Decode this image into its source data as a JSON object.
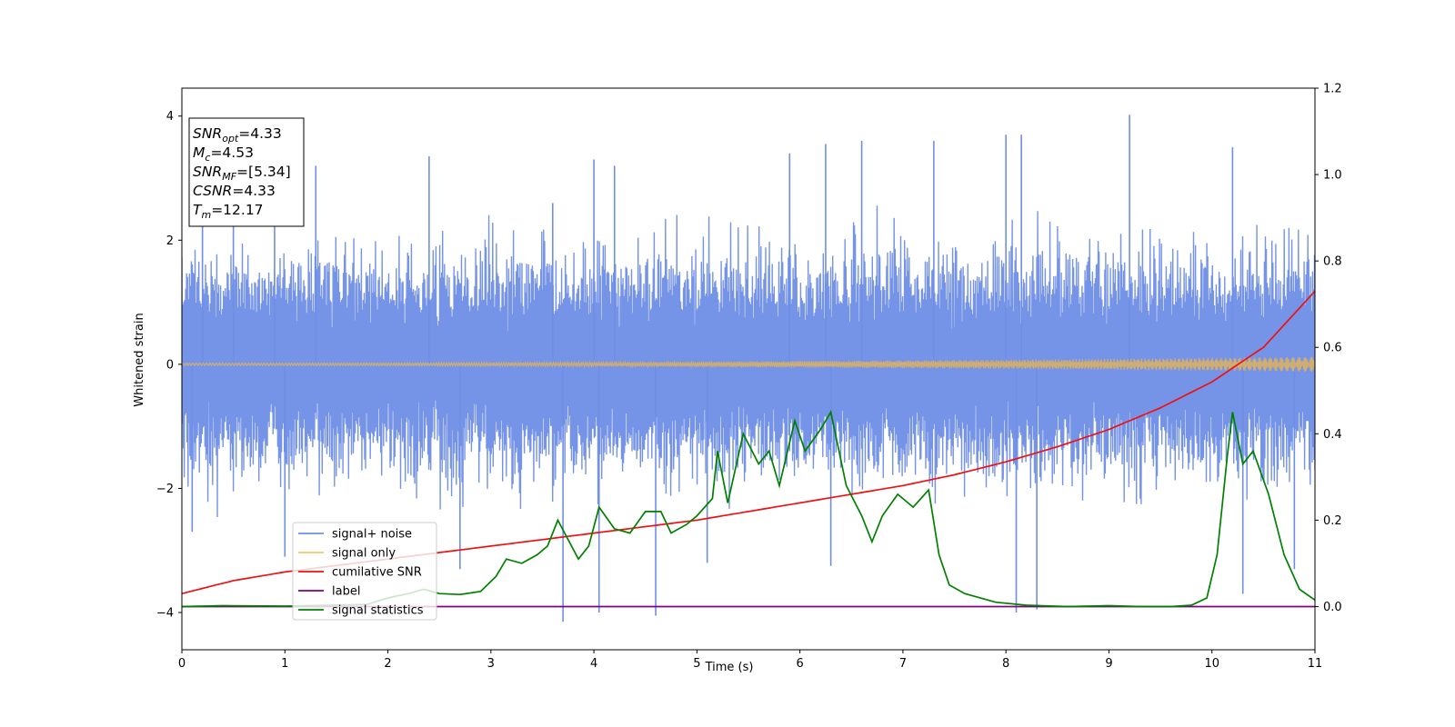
{
  "chart_data": {
    "type": "line",
    "title": "",
    "xlabel": "Time (s)",
    "ylabel": "Whitened strain",
    "xlim": [
      0,
      11
    ],
    "ylim": [
      -4.6,
      4.45
    ],
    "y2lim": [
      -0.1,
      1.2
    ],
    "xticks": [
      0,
      1,
      2,
      3,
      4,
      5,
      6,
      7,
      8,
      9,
      10,
      11
    ],
    "yticks": [
      -4,
      -2,
      0,
      2,
      4
    ],
    "y2ticks": [
      0.0,
      0.2,
      0.4,
      0.6,
      0.8,
      1.0,
      1.2
    ],
    "ytick_labels": [
      "−4",
      "−2",
      "0",
      "2",
      "4"
    ],
    "y2tick_labels": [
      "0.0",
      "0.2",
      "0.4",
      "0.6",
      "0.8",
      "1.0",
      "1.2"
    ],
    "grid": false,
    "legend_position": "lower-left",
    "colors": {
      "noise": "#6f8ee6",
      "signal": "#e0b25a",
      "csnr": "#ee1111",
      "label": "#800080",
      "stats": "#008000"
    },
    "annotation": {
      "lines": [
        {
          "base": "SNR",
          "sub": "opt",
          "value": "=4.33"
        },
        {
          "base": "M",
          "sub": "c",
          "value": "=4.53"
        },
        {
          "base": "SNR",
          "sub": "MF",
          "value": "=[5.34]"
        },
        {
          "base": "CSNR",
          "sub": "",
          "value": "=4.33"
        },
        {
          "base": "T",
          "sub": "m",
          "value": "=12.17"
        }
      ]
    },
    "legend": [
      {
        "name": "signal+ noise",
        "color": "#6f8ee6"
      },
      {
        "name": "signal only",
        "color": "#f5c66a"
      },
      {
        "name": "cumilative SNR",
        "color": "#ee1111"
      },
      {
        "name": "label",
        "color": "#800080"
      },
      {
        "name": "signal statistics",
        "color": "#008000"
      }
    ],
    "series": [
      {
        "name": "signal+ noise",
        "axis": "left",
        "description": "noise band approx +/-1.8 std with spikes",
        "envelope_x": [
          0,
          11
        ],
        "envelope_y": [
          -1.9,
          1.9
        ],
        "spikes": [
          {
            "x": 0.2,
            "y": 2.4
          },
          {
            "x": 0.5,
            "y": 2.7
          },
          {
            "x": 0.9,
            "y": 3.1
          },
          {
            "x": 1.3,
            "y": 3.2
          },
          {
            "x": 2.4,
            "y": 3.35
          },
          {
            "x": 3.6,
            "y": 2.6
          },
          {
            "x": 4.0,
            "y": 3.3
          },
          {
            "x": 4.2,
            "y": 3.2
          },
          {
            "x": 5.9,
            "y": 3.4
          },
          {
            "x": 6.25,
            "y": 3.55
          },
          {
            "x": 6.6,
            "y": 3.6
          },
          {
            "x": 7.3,
            "y": 3.6
          },
          {
            "x": 8.0,
            "y": 3.7
          },
          {
            "x": 8.15,
            "y": 3.7
          },
          {
            "x": 9.2,
            "y": 4.02
          },
          {
            "x": 10.2,
            "y": 3.5
          },
          {
            "x": 3.7,
            "y": -4.15
          },
          {
            "x": 4.05,
            "y": -4.0
          },
          {
            "x": 4.6,
            "y": -4.05
          },
          {
            "x": 0.1,
            "y": -2.7
          },
          {
            "x": 1.0,
            "y": -3.1
          },
          {
            "x": 2.7,
            "y": -3.3
          },
          {
            "x": 5.1,
            "y": -3.2
          },
          {
            "x": 6.3,
            "y": -3.25
          },
          {
            "x": 8.1,
            "y": -4.0
          },
          {
            "x": 8.3,
            "y": -3.95
          },
          {
            "x": 10.3,
            "y": -3.7
          },
          {
            "x": 10.8,
            "y": -3.3
          }
        ]
      },
      {
        "name": "signal only",
        "axis": "left",
        "description": "chirp with amplitude growing from ~0.02 to ~0.12",
        "amplitude_start": 0.02,
        "amplitude_end": 0.12
      },
      {
        "name": "cumilative SNR",
        "axis": "right",
        "x": [
          0,
          0.5,
          1,
          1.5,
          2,
          2.5,
          3,
          3.5,
          4,
          4.5,
          5,
          5.5,
          6,
          6.5,
          7,
          7.5,
          8,
          8.5,
          9,
          9.5,
          10,
          10.5,
          11
        ],
        "y": [
          0.03,
          0.06,
          0.08,
          0.095,
          0.11,
          0.125,
          0.14,
          0.155,
          0.17,
          0.185,
          0.2,
          0.22,
          0.24,
          0.26,
          0.28,
          0.305,
          0.335,
          0.37,
          0.41,
          0.46,
          0.52,
          0.6,
          0.73
        ]
      },
      {
        "name": "label",
        "axis": "right",
        "x": [
          0,
          11
        ],
        "y": [
          0.0,
          0.0
        ]
      },
      {
        "name": "signal statistics",
        "axis": "right",
        "x": [
          0,
          0.4,
          1.0,
          1.8,
          2.0,
          2.2,
          2.35,
          2.5,
          2.7,
          2.9,
          3.05,
          3.15,
          3.3,
          3.45,
          3.55,
          3.65,
          3.85,
          3.95,
          4.05,
          4.2,
          4.35,
          4.5,
          4.65,
          4.75,
          4.9,
          5.0,
          5.15,
          5.2,
          5.3,
          5.45,
          5.6,
          5.7,
          5.8,
          5.95,
          6.05,
          6.2,
          6.3,
          6.45,
          6.6,
          6.7,
          6.8,
          6.95,
          7.1,
          7.25,
          7.35,
          7.45,
          7.6,
          7.9,
          8.2,
          8.6,
          9.0,
          9.3,
          9.6,
          9.8,
          9.95,
          10.05,
          10.15,
          10.2,
          10.3,
          10.4,
          10.55,
          10.7,
          10.85,
          11.0
        ],
        "y": [
          0.0,
          0.002,
          0.001,
          0.005,
          0.02,
          0.03,
          0.04,
          0.03,
          0.028,
          0.035,
          0.07,
          0.11,
          0.1,
          0.12,
          0.14,
          0.2,
          0.11,
          0.14,
          0.23,
          0.18,
          0.17,
          0.22,
          0.22,
          0.17,
          0.19,
          0.21,
          0.25,
          0.36,
          0.24,
          0.4,
          0.33,
          0.36,
          0.28,
          0.43,
          0.36,
          0.41,
          0.45,
          0.28,
          0.21,
          0.15,
          0.21,
          0.26,
          0.23,
          0.27,
          0.12,
          0.05,
          0.03,
          0.01,
          0.003,
          0.0,
          0.002,
          0.0,
          0.0,
          0.003,
          0.02,
          0.12,
          0.35,
          0.45,
          0.33,
          0.36,
          0.26,
          0.12,
          0.04,
          0.015
        ]
      }
    ]
  }
}
